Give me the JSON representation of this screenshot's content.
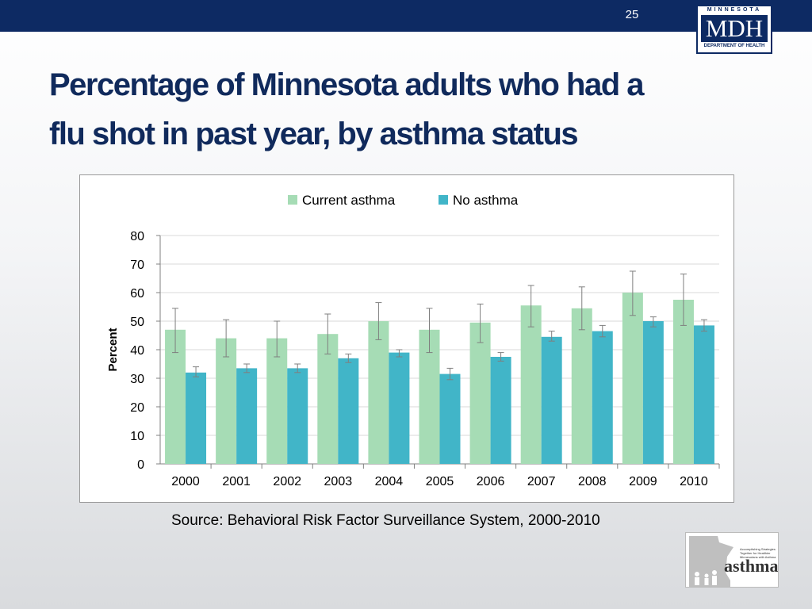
{
  "slide": {
    "number": "25",
    "title_line1": "Percentage of Minnesota adults who had a",
    "title_line2": "flu shot in past year, by asthma status",
    "source": "Source: Behavioral Risk Factor Surveillance System, 2000-2010"
  },
  "mdh_logo": {
    "top_text": "MINNESOTA",
    "main_text": "MDH",
    "bottom_text": "DEPARTMENT OF HEALTH"
  },
  "asthma_logo": {
    "word": "asthma",
    "tagline": "Accomplishing Strategies Together for Healthier Minnesotans with Asthma"
  },
  "colors": {
    "current_asthma": "#a6dcb5",
    "no_asthma": "#41b5c8",
    "title": "#102a5c",
    "top_bar": "#0d2a63"
  },
  "chart_data": {
    "type": "bar",
    "title": "",
    "xlabel": "",
    "ylabel": "Percent",
    "ylim": [
      0,
      80
    ],
    "yticks": [
      0,
      10,
      20,
      30,
      40,
      50,
      60,
      70,
      80
    ],
    "grid": true,
    "legend_position": "top",
    "categories": [
      "2000",
      "2001",
      "2002",
      "2003",
      "2004",
      "2005",
      "2006",
      "2007",
      "2008",
      "2009",
      "2010"
    ],
    "series": [
      {
        "name": "Current asthma",
        "color": "#a6dcb5",
        "values": [
          47,
          44,
          44,
          45.5,
          50,
          47,
          49.5,
          55.5,
          54.5,
          60,
          57.5
        ],
        "error_low": [
          39,
          37.5,
          37.5,
          38.5,
          43.5,
          39,
          42.5,
          48,
          47,
          52,
          48.5
        ],
        "error_high": [
          54.5,
          50.5,
          50,
          52.5,
          56.5,
          54.5,
          56,
          62.5,
          62,
          67.5,
          66.5
        ]
      },
      {
        "name": "No asthma",
        "color": "#41b5c8",
        "values": [
          32,
          33.5,
          33.5,
          37,
          39,
          31.5,
          37.5,
          44.5,
          46.5,
          50,
          48.5
        ],
        "error_low": [
          30.5,
          32,
          32,
          35.5,
          37.5,
          29.5,
          36,
          43,
          44.5,
          48,
          46.5
        ],
        "error_high": [
          34,
          35,
          35,
          38.5,
          40,
          33.5,
          39,
          46.5,
          48.5,
          51.5,
          50.5
        ]
      }
    ]
  }
}
